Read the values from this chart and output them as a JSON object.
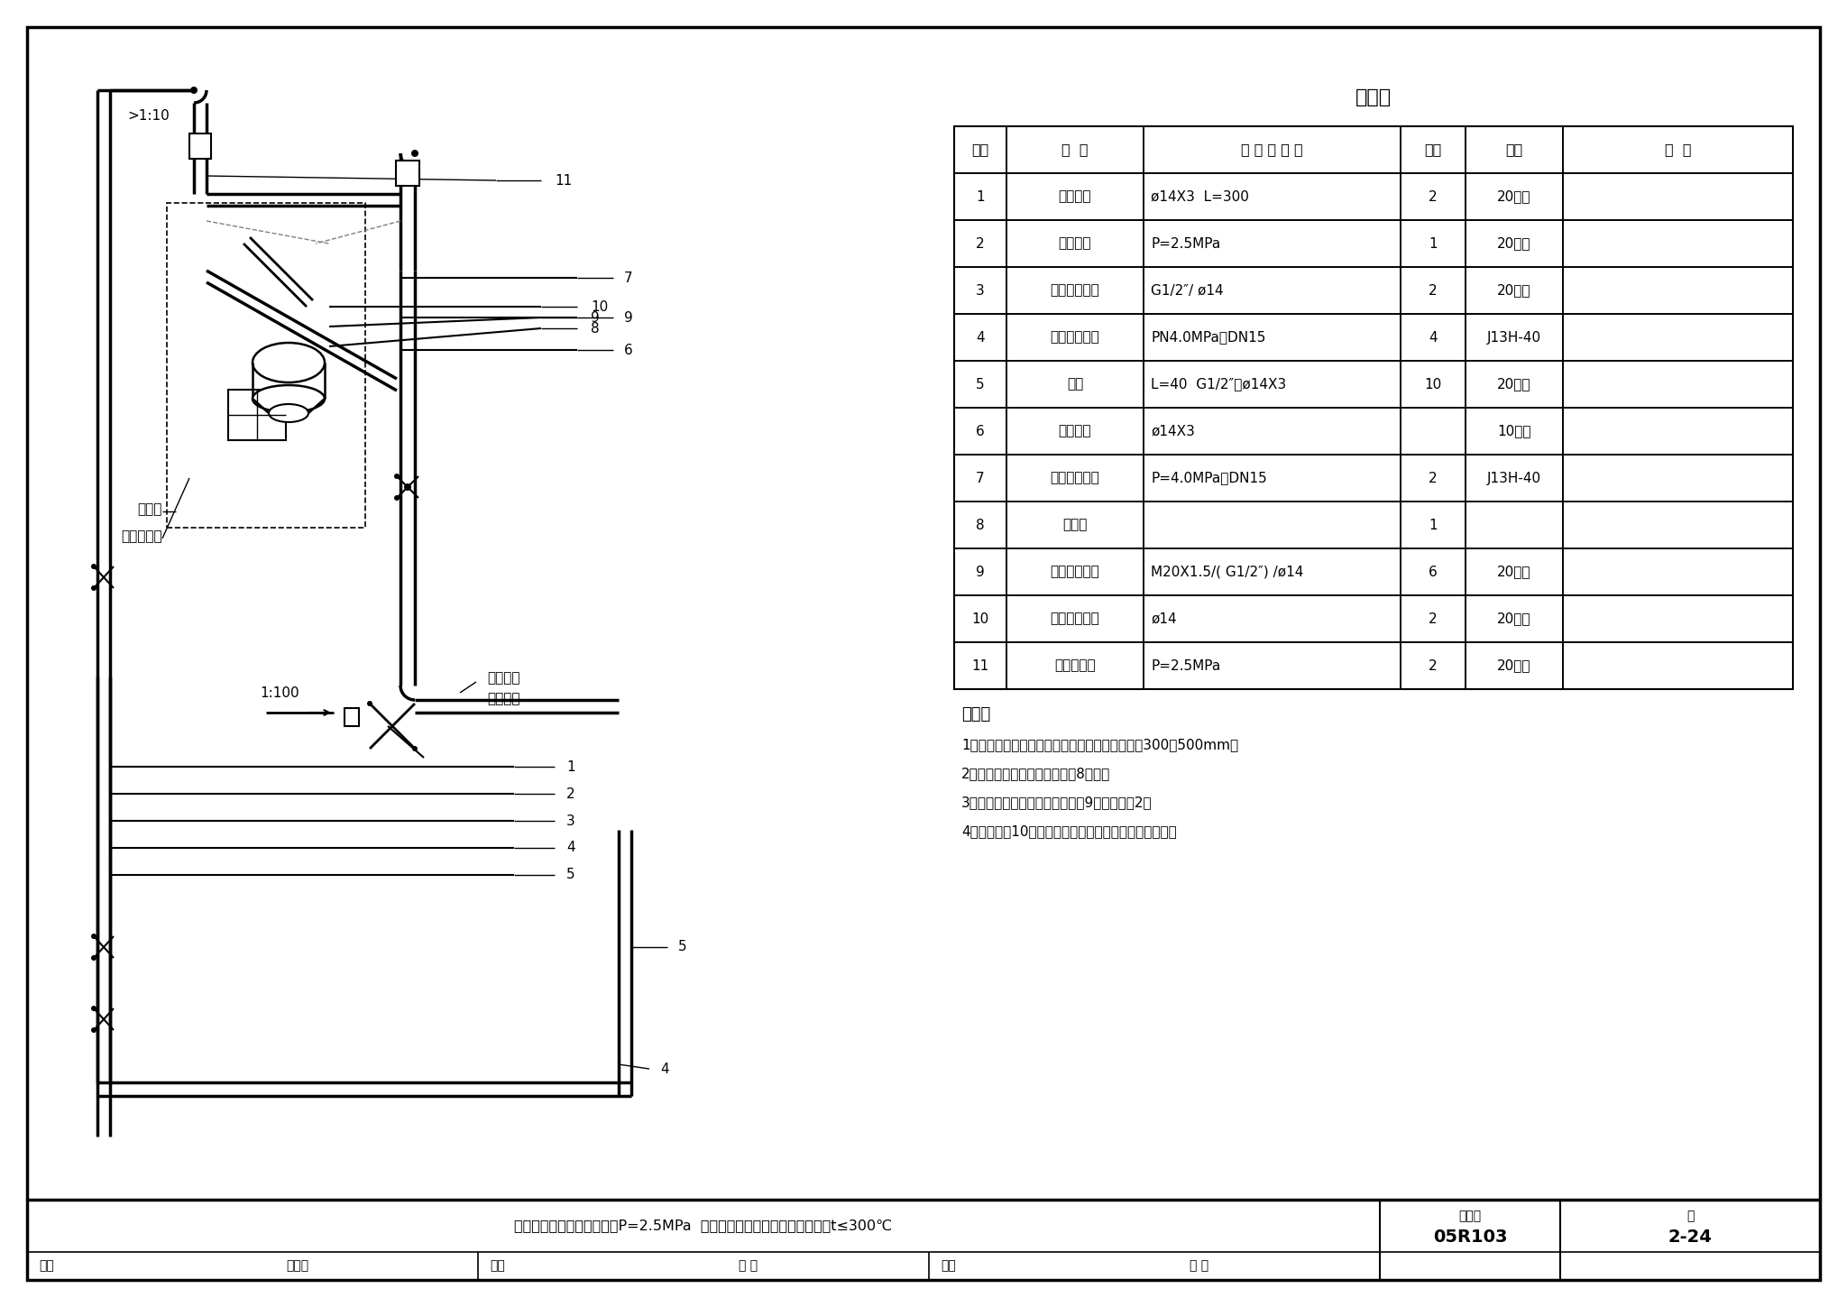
{
  "title": "材料表",
  "table_headers": [
    "序号",
    "名  称",
    "型 号 及 规 格",
    "数量",
    "材料",
    "备  注"
  ],
  "table_col_widths": [
    58,
    152,
    285,
    72,
    108,
    255
  ],
  "table_rows": [
    [
      "1",
      "无缝钢管",
      "ø14X3  L=300",
      "2",
      "20号钢",
      ""
    ],
    [
      "2",
      "冷凝容器",
      "P=2.5MPa",
      "1",
      "20号钢",
      ""
    ],
    [
      "3",
      "直通终端接头",
      "G1/2″/ ø14",
      "2",
      "20号钢",
      ""
    ],
    [
      "4",
      "内螺纹截止阀",
      "PN4.0MPa，DN15",
      "4",
      "J13H-40",
      ""
    ],
    [
      "5",
      "短节",
      "L=40  G1/2″，ø14X3",
      "10",
      "20号钢",
      ""
    ],
    [
      "6",
      "无缝钢管",
      "ø14X3",
      "",
      "10号钢",
      ""
    ],
    [
      "7",
      "内螺纹截止阀",
      "P=4.0MPa，DN15",
      "2",
      "J13H-40",
      ""
    ],
    [
      "8",
      "三阀组",
      "",
      "1",
      "",
      ""
    ],
    [
      "9",
      "直通终端接头",
      "M20X1.5/( G1/2″) /ø14",
      "6",
      "20号钢",
      ""
    ],
    [
      "10",
      "直通穿板接头",
      "ø14",
      "2",
      "20号钢",
      ""
    ],
    [
      "11",
      "气体收集器",
      "P=2.5MPa",
      "2",
      "20号钢",
      ""
    ]
  ],
  "notes_title": "附注：",
  "notes": [
    "1、平衡容器至下排污阀的下垂管段长度宜不小于300～500mm。",
    "2、如不在保温箱内安装，序号8取消。",
    "3、如使用双波纹管差压计，序号9的件数改为2。",
    "4、图中序号10的连接形式亦可用焊接连接或整段直管。"
  ],
  "tb_title": "测量蒸汽流量管路连接图（P=2.5MPa  差压计高于节流装置带平衡容器）t≤300℃",
  "tb_atlas": "图集号",
  "tb_atlas_val": "05R103",
  "tb_page_label": "页",
  "tb_page_val": "2-24",
  "tb_review": [
    {
      "label": "审核",
      "name": "徐邦熙"
    },
    {
      "label": "校对",
      "name": "曹 侑"
    },
    {
      "label": "设计",
      "name": "栾 静"
    }
  ],
  "bg": "#ffffff"
}
